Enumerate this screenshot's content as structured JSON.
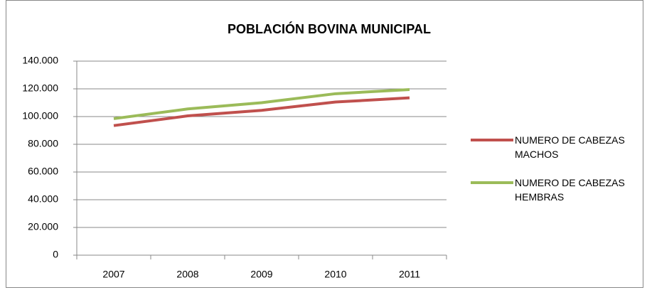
{
  "chart_data": {
    "type": "line",
    "title": "POBLACIÓN BOVINA  MUNICIPAL",
    "categories": [
      "2007",
      "2008",
      "2009",
      "2010",
      "2011"
    ],
    "series": [
      {
        "name": "NUMERO DE CABEZAS MACHOS",
        "color": "#c0504d",
        "values": [
          93500,
          100500,
          104500,
          110500,
          113500
        ]
      },
      {
        "name": "NUMERO DE CABEZAS HEMBRAS",
        "color": "#9bbb59",
        "values": [
          98500,
          105500,
          110000,
          116500,
          119500
        ]
      }
    ],
    "ylim": [
      0,
      140000
    ],
    "yticks": [
      0,
      {
        "value": 20000,
        "label": "20.000"
      },
      {
        "value": 40000,
        "label": "40.000"
      },
      {
        "value": 60000,
        "label": "60.000"
      },
      {
        "value": 80000,
        "label": "80.000"
      },
      {
        "value": 100000,
        "label": "100.000"
      },
      {
        "value": 120000,
        "label": "120.000"
      },
      {
        "value": 140000,
        "label": "140.000"
      }
    ],
    "grid": true,
    "legend": "right"
  }
}
